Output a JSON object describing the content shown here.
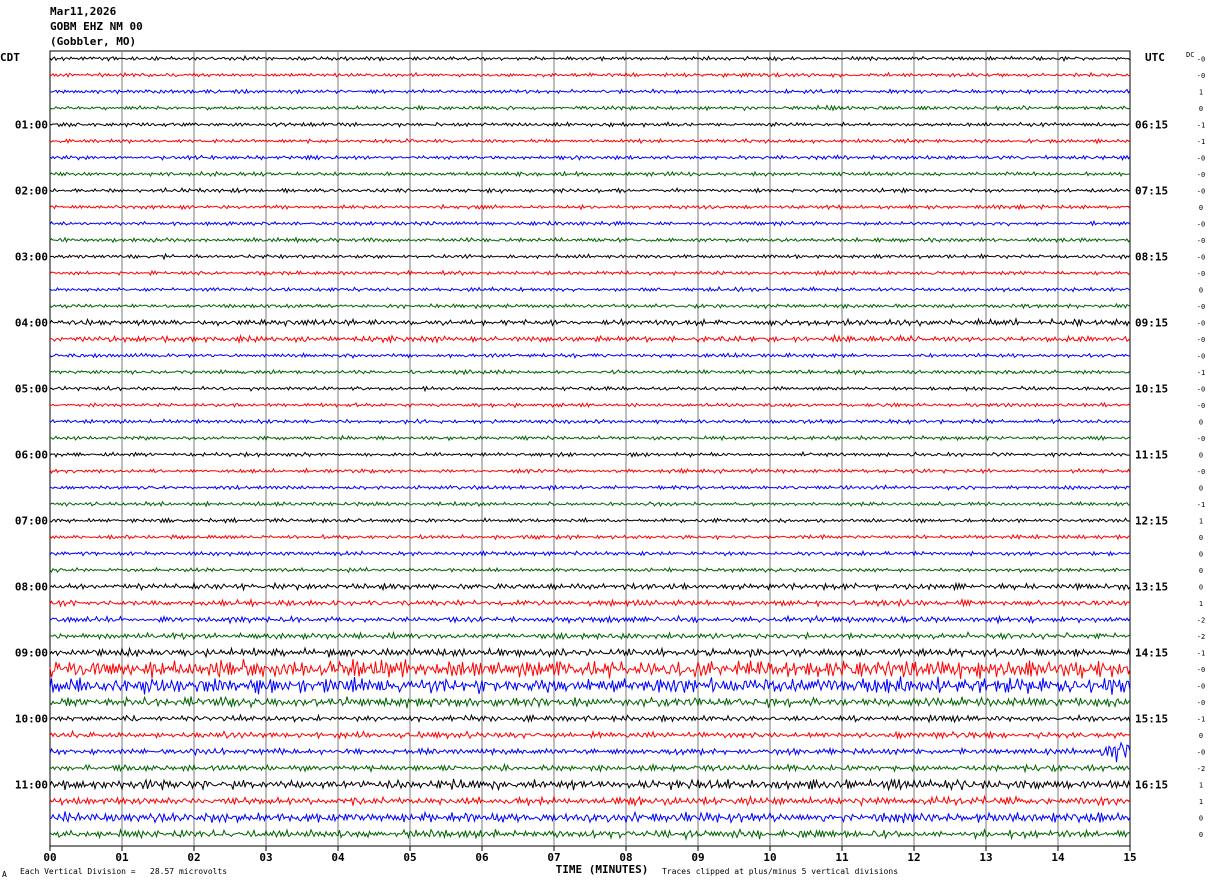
{
  "header": {
    "date": "Mar11,2026",
    "station": "GOBM EHZ NM 00",
    "location": "(Gobbler, MO)"
  },
  "chart_data": {
    "type": "line",
    "title": "",
    "left_axis_label": "CDT",
    "right_axis_label": "UTC",
    "dc_label": "DC",
    "xlabel": "TIME (MINUTES)",
    "xlim": [
      0,
      15
    ],
    "x_ticks": [
      "00",
      "01",
      "02",
      "03",
      "04",
      "05",
      "06",
      "07",
      "08",
      "09",
      "10",
      "11",
      "12",
      "13",
      "14",
      "15"
    ],
    "trace_colors": [
      "#000000",
      "#ff0000",
      "#0000ff",
      "#006400"
    ],
    "trace_count": 48,
    "local_hour_labels": [
      "01:00",
      "02:00",
      "03:00",
      "04:00",
      "05:00",
      "06:00",
      "07:00",
      "08:00",
      "09:00",
      "10:00",
      "11:00"
    ],
    "utc_hour_labels": [
      "06:15",
      "07:15",
      "08:15",
      "09:15",
      "10:15",
      "11:15",
      "12:15",
      "13:15",
      "14:15",
      "15:15",
      "16:15"
    ],
    "dc_offsets": [
      "-0",
      "-0",
      "1",
      "0",
      "-1",
      "-1",
      "-0",
      "-0",
      "-0",
      "0",
      "-0",
      "-0",
      "-0",
      "-0",
      "0",
      "-0",
      "-0",
      "-0",
      "-0",
      "-1",
      "-0",
      "-0",
      "0",
      "-0",
      "0",
      "-0",
      "0",
      "-1",
      "1",
      "0",
      "0",
      "0",
      "0",
      "1",
      "-2",
      "-2",
      "-1",
      "-0",
      "-0",
      "-0",
      "-1",
      "0",
      "-0",
      "-2",
      "1",
      "1",
      "0",
      "0"
    ],
    "amplitudes": [
      2,
      2,
      2,
      2,
      2,
      2,
      2,
      2,
      2,
      2,
      2,
      2,
      2,
      2,
      2,
      2,
      3,
      3,
      2,
      2,
      2,
      2,
      2,
      2,
      2,
      2,
      2,
      2,
      2,
      2,
      2,
      2,
      3,
      3,
      3,
      3,
      4,
      9,
      8,
      5,
      3,
      3,
      3,
      3,
      5,
      4,
      5,
      4
    ],
    "events": [
      {
        "trace": 42,
        "minute": 14.85,
        "peak": 18
      }
    ],
    "footer_left": "Each Vertical Division =   28.57 microvolts",
    "footer_right": "Traces clipped at plus/minus 5 vertical divisions",
    "footer_mark": "A"
  }
}
